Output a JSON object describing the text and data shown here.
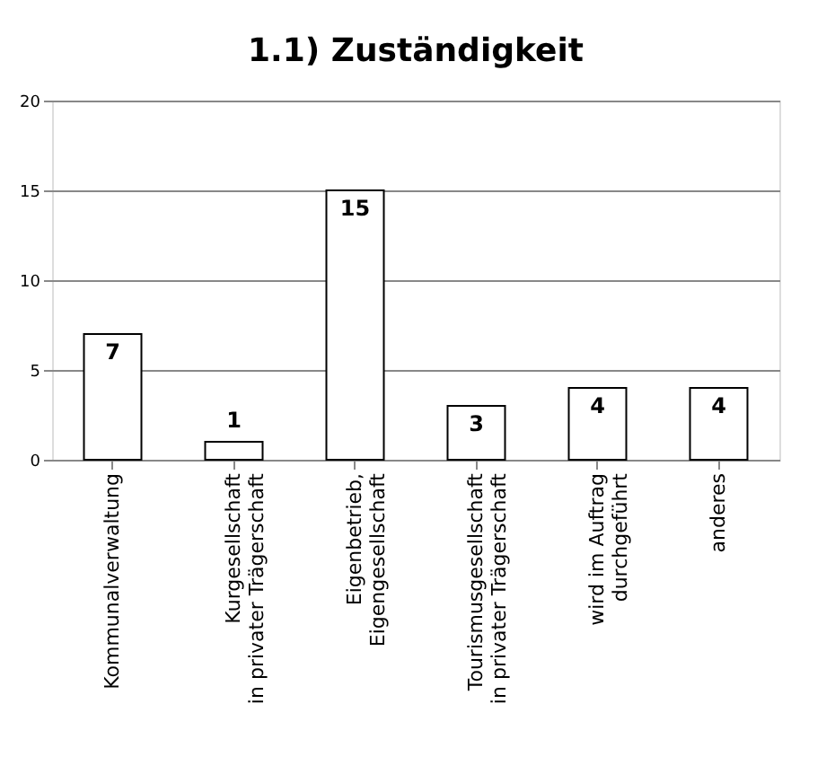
{
  "chart_data": {
    "type": "bar",
    "title": "1.1) Zuständigkeit",
    "categories": [
      "Kommunalverwaltung",
      "Kurgesellschaft\nin privater Trägerschaft",
      "Eigenbetrieb,\nEigengesellschaft",
      "Tourismusgesellschaft\nin privater Trägerschaft",
      "wird im Auftrag\ndurchgeführt",
      "anderes"
    ],
    "values": [
      7,
      1,
      15,
      3,
      4,
      4
    ],
    "color": "#ffffff",
    "ylim": [
      0,
      20
    ],
    "yticks": [
      0,
      5,
      10,
      15,
      20
    ],
    "grid": "y",
    "data_labels": true
  }
}
